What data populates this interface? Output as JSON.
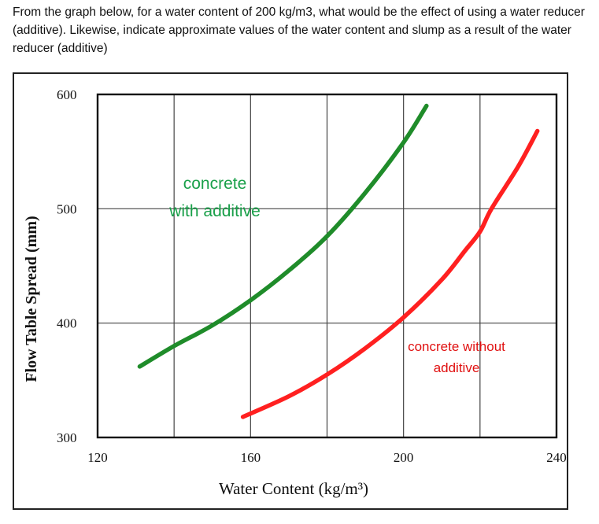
{
  "question": {
    "text": "From the graph below, for a water content of 200 kg/m3, what would be the effect of using a water reducer (additive). Likewise, indicate approximate values of the water content and slump as a result of the water reducer (additive)"
  },
  "chart_data": {
    "type": "line",
    "xlabel": "Water Content (kg/m³)",
    "ylabel": "Flow Table Spread (mm)",
    "xlim": [
      120,
      240
    ],
    "ylim": [
      300,
      600
    ],
    "x_ticks": [
      "120",
      "160",
      "200",
      "240"
    ],
    "y_ticks": [
      "300",
      "400",
      "500",
      "600"
    ],
    "grid": true,
    "series": [
      {
        "name": "concrete with additive",
        "label_lines": [
          "concrete",
          "with additive"
        ],
        "color": "#1f8c2a",
        "label_color": "#1aa04a",
        "points": [
          [
            131,
            362
          ],
          [
            140,
            380
          ],
          [
            150,
            398
          ],
          [
            160,
            420
          ],
          [
            170,
            446
          ],
          [
            180,
            476
          ],
          [
            190,
            514
          ],
          [
            200,
            558
          ],
          [
            206,
            590
          ]
        ]
      },
      {
        "name": "concrete without additive",
        "label_lines": [
          "concrete without",
          "additive"
        ],
        "color": "#ff2020",
        "label_color": "#e01010",
        "points": [
          [
            158,
            318
          ],
          [
            170,
            336
          ],
          [
            180,
            355
          ],
          [
            190,
            378
          ],
          [
            200,
            405
          ],
          [
            210,
            438
          ],
          [
            216,
            463
          ],
          [
            220,
            480
          ],
          [
            223,
            500
          ],
          [
            230,
            537
          ],
          [
            235,
            568
          ]
        ]
      }
    ]
  }
}
